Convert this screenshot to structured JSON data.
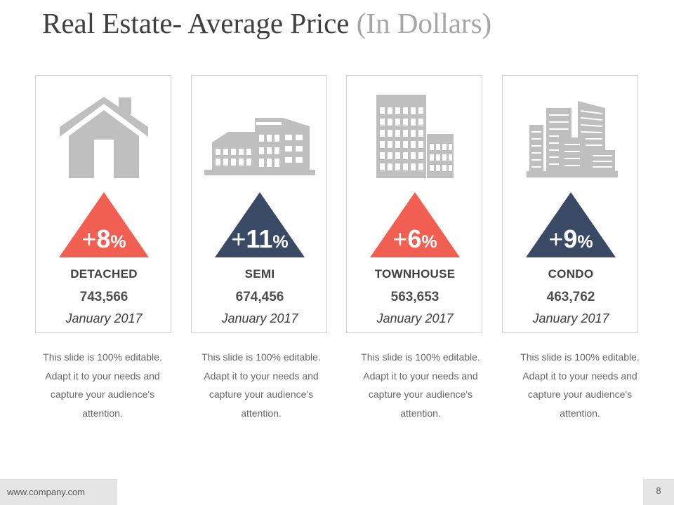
{
  "title": {
    "main": "Real Estate- Average Price ",
    "sub": "(In Dollars)"
  },
  "colors": {
    "coral": "#F15E52",
    "navy": "#3A4A64",
    "icon": "#BFBFBF"
  },
  "cards": [
    {
      "sign": "+",
      "num": "8",
      "unit": "%",
      "category": "DETACHED",
      "value": "743,566",
      "date": "January 2017",
      "icon": "house-icon",
      "color": "#F15E52"
    },
    {
      "sign": "+",
      "num": "11",
      "unit": "%",
      "category": "SEMI",
      "value": "674,456",
      "date": "January 2017",
      "icon": "building-icon",
      "color": "#3A4A64"
    },
    {
      "sign": "+",
      "num": "6",
      "unit": "%",
      "category": "TOWNHOUSE",
      "value": "563,653",
      "date": "January 2017",
      "icon": "towers-icon",
      "color": "#F15E52"
    },
    {
      "sign": "+",
      "num": "9",
      "unit": "%",
      "category": "CONDO",
      "value": "463,762",
      "date": "January 2017",
      "icon": "city-icon",
      "color": "#3A4A64"
    }
  ],
  "description": {
    "line1": "This slide is 100% editable.",
    "line2": "Adapt it to your needs and",
    "line3": "capture your audience's",
    "line4": "attention."
  },
  "footer": {
    "website": "www.company.com",
    "page": "8"
  }
}
